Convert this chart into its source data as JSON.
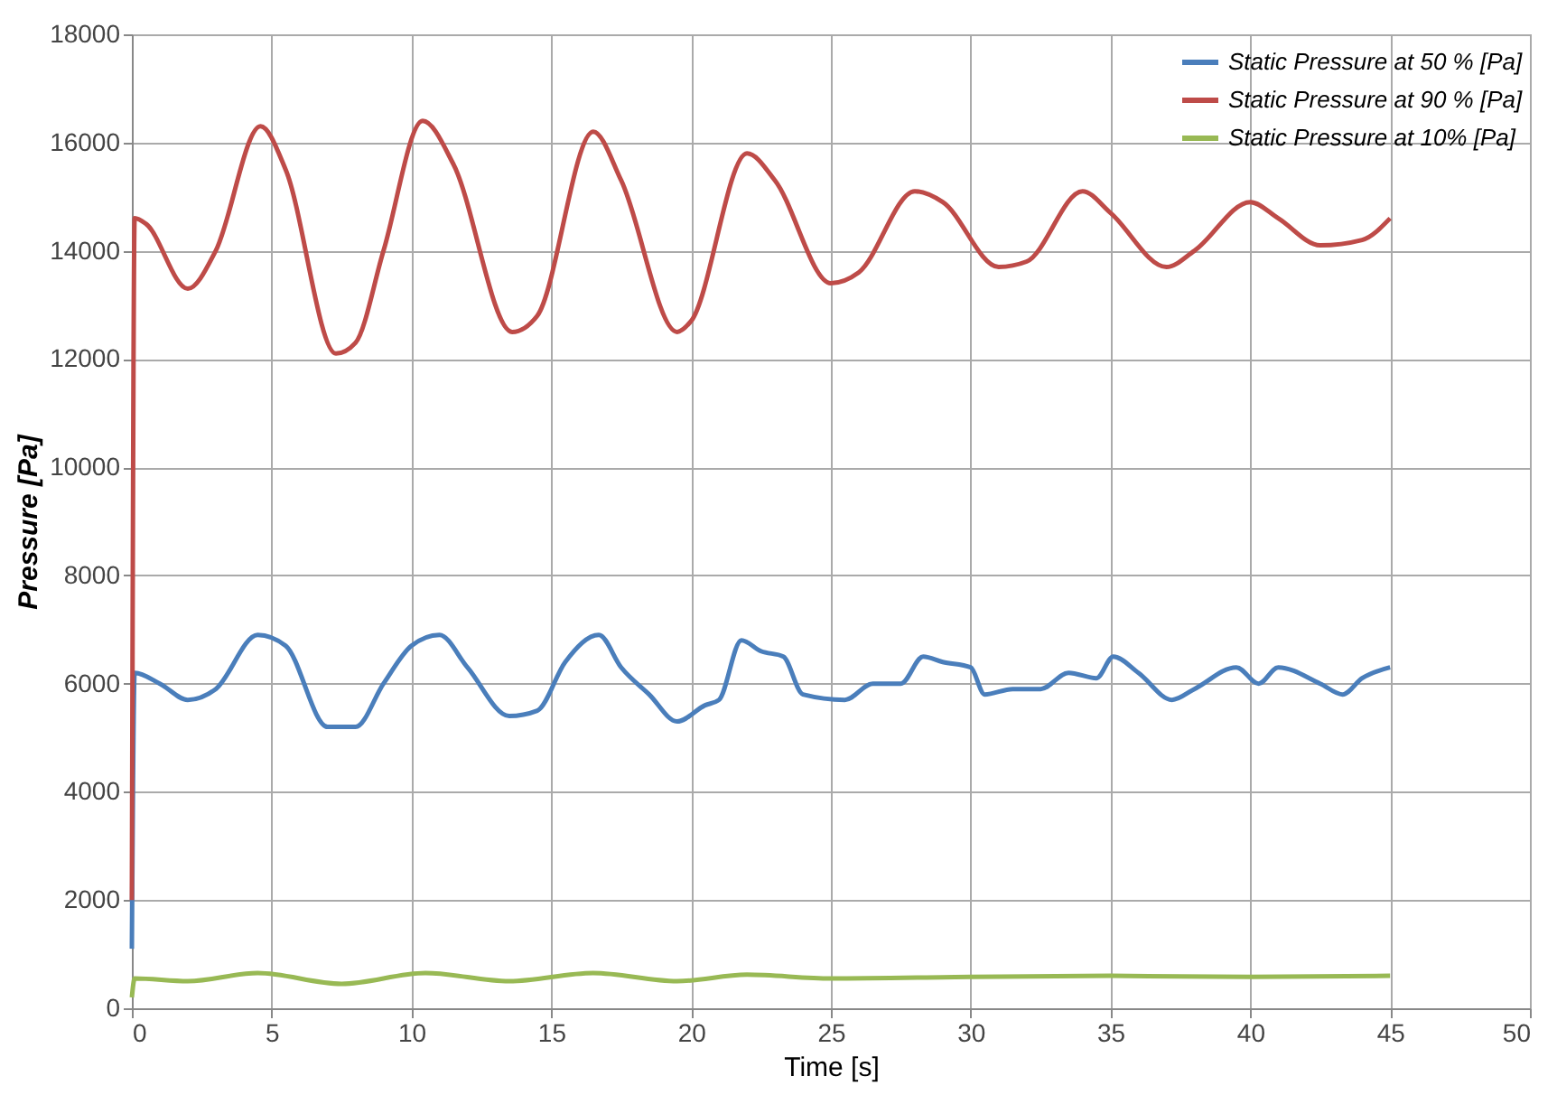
{
  "chart_data": {
    "type": "line",
    "xlabel": "Time [s]",
    "ylabel": "Pressure   [Pa]",
    "xlim": [
      0,
      50
    ],
    "xticks": [
      0,
      5,
      10,
      15,
      20,
      25,
      30,
      35,
      40,
      45,
      50
    ],
    "ylim": [
      0,
      18000
    ],
    "yticks": [
      0,
      2000,
      4000,
      6000,
      8000,
      10000,
      12000,
      14000,
      16000,
      18000
    ],
    "grid": true,
    "legend": "top right",
    "marker": "none",
    "line_style": "solid",
    "series": [
      {
        "name": "Static Pressure at 50 % [Pa]",
        "color": "#4a7ebb",
        "x": [
          0,
          0.1,
          1,
          2,
          3,
          4.5,
          5.5,
          7,
          8,
          9,
          10,
          11,
          12,
          13.5,
          14.5,
          15.5,
          16.7,
          17.5,
          18.5,
          19.5,
          20.5,
          21,
          21.8,
          22.5,
          23.3,
          24,
          25.5,
          26.5,
          27.5,
          28.3,
          29,
          30,
          30.5,
          31.5,
          32.5,
          33.5,
          34.5,
          35.1,
          36,
          37.2,
          38,
          39.5,
          40.3,
          41,
          42.5,
          43.3,
          44,
          45
        ],
        "values": [
          1100,
          6200,
          6000,
          5700,
          5900,
          6900,
          6700,
          5200,
          5200,
          6000,
          6700,
          6900,
          6300,
          5400,
          5500,
          6400,
          6900,
          6300,
          5800,
          5300,
          5600,
          5700,
          6800,
          6600,
          6500,
          5800,
          5700,
          6000,
          6000,
          6500,
          6400,
          6300,
          5800,
          5900,
          5900,
          6200,
          6100,
          6500,
          6200,
          5700,
          5900,
          6300,
          6000,
          6300,
          6000,
          5800,
          6100,
          6300
        ]
      },
      {
        "name": "Static Pressure at 90 % [Pa]",
        "color": "#be4b48",
        "x": [
          0,
          0.1,
          0.5,
          2,
          3,
          4.6,
          5.5,
          7.3,
          8,
          9,
          10.4,
          11.5,
          13.6,
          14.5,
          16.5,
          17.5,
          19.5,
          20,
          22,
          23,
          25,
          26,
          28,
          29,
          31,
          32,
          34,
          35,
          37,
          38,
          40,
          41,
          42.5,
          44,
          45
        ],
        "values": [
          2000,
          14600,
          14500,
          13300,
          14000,
          16300,
          15500,
          12100,
          12300,
          14000,
          16400,
          15600,
          12500,
          12800,
          16200,
          15300,
          12500,
          12700,
          15800,
          15300,
          13400,
          13600,
          15100,
          14900,
          13700,
          13800,
          15100,
          14700,
          13700,
          14000,
          14900,
          14600,
          14100,
          14200,
          14600
        ]
      },
      {
        "name": "Static Pressure at 10% [Pa]",
        "color": "#98b954",
        "x": [
          0,
          0.1,
          2,
          4.5,
          7.5,
          10.5,
          13.5,
          16.5,
          19.5,
          22,
          25,
          30,
          35,
          40,
          45
        ],
        "values": [
          200,
          550,
          500,
          650,
          450,
          650,
          500,
          650,
          500,
          620,
          550,
          580,
          600,
          580,
          600
        ]
      }
    ]
  }
}
